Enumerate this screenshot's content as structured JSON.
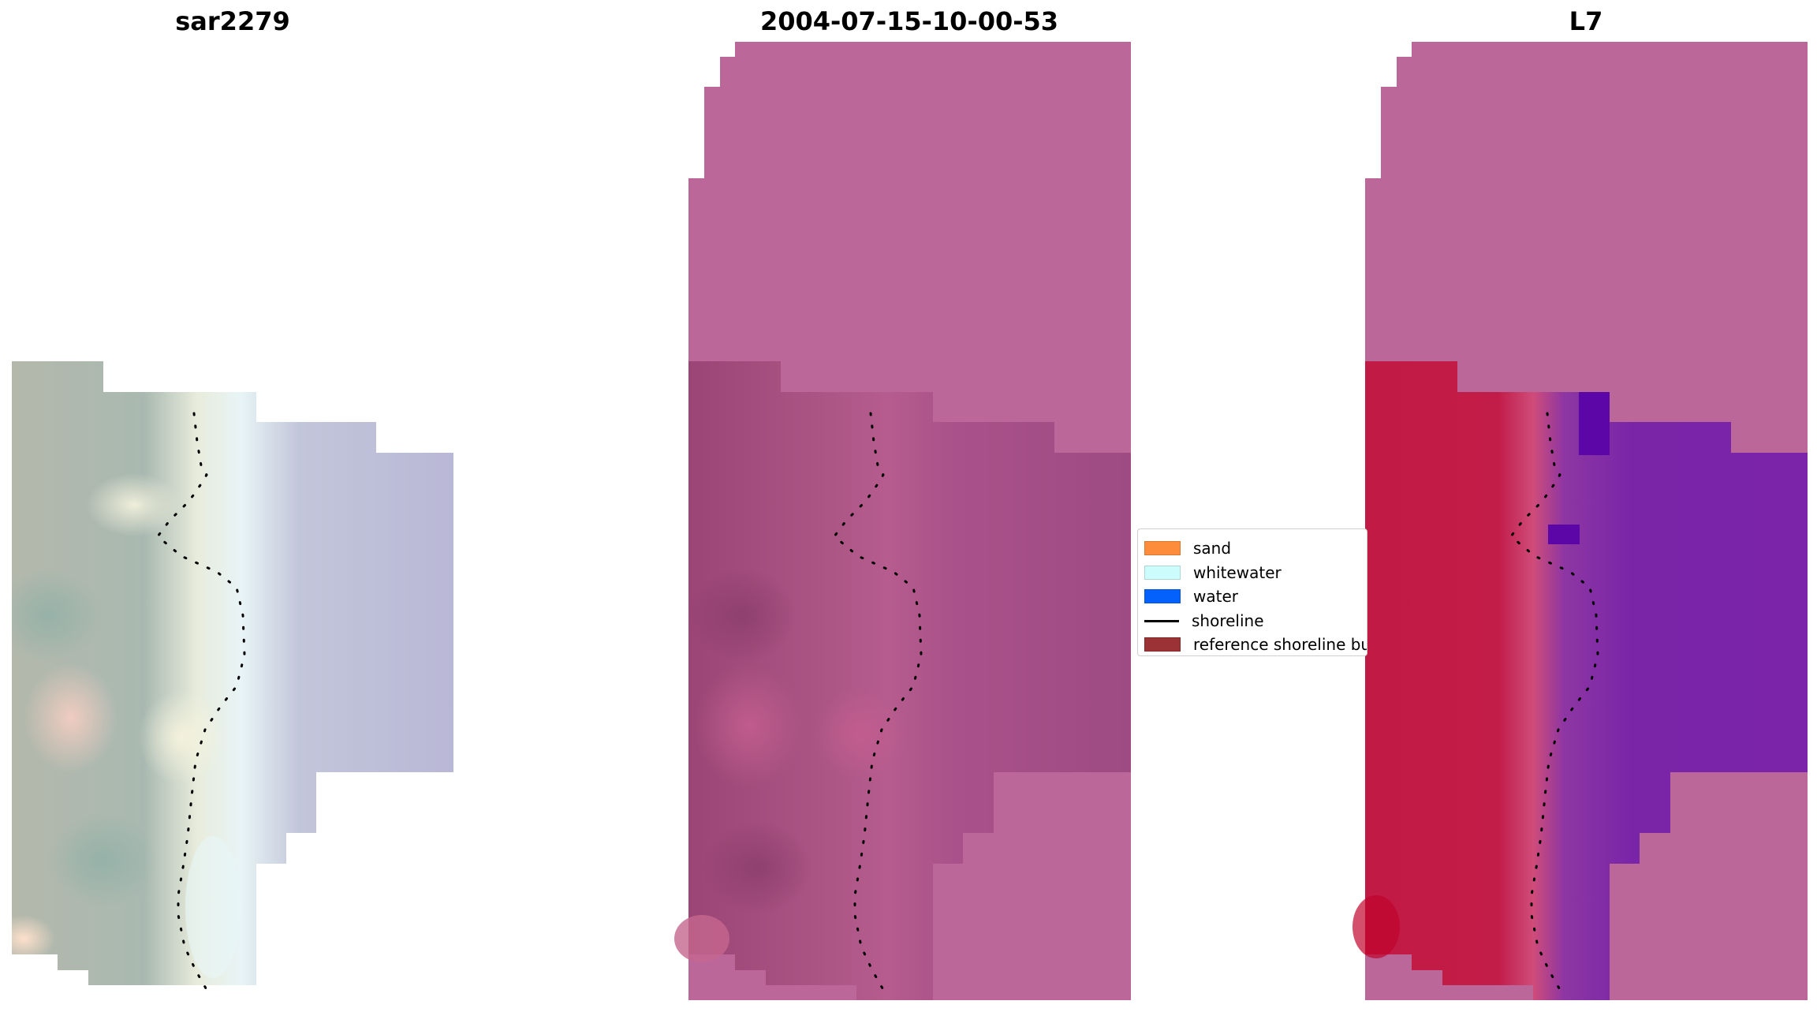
{
  "panels": [
    {
      "title": "sar2279"
    },
    {
      "title": "2004-07-15-10-00-53"
    },
    {
      "title": "L7"
    }
  ],
  "legend": {
    "items": [
      {
        "label": "sand",
        "color": "#fd8d3c",
        "kind": "patch"
      },
      {
        "label": "whitewater",
        "color": "#ccfcfc",
        "kind": "patch"
      },
      {
        "label": "water",
        "color": "#0561fb",
        "kind": "patch"
      },
      {
        "label": "shoreline",
        "color": "#000000",
        "kind": "line"
      },
      {
        "label": "reference shoreline buffer",
        "color": "#9a3236",
        "kind": "patch"
      }
    ]
  }
}
